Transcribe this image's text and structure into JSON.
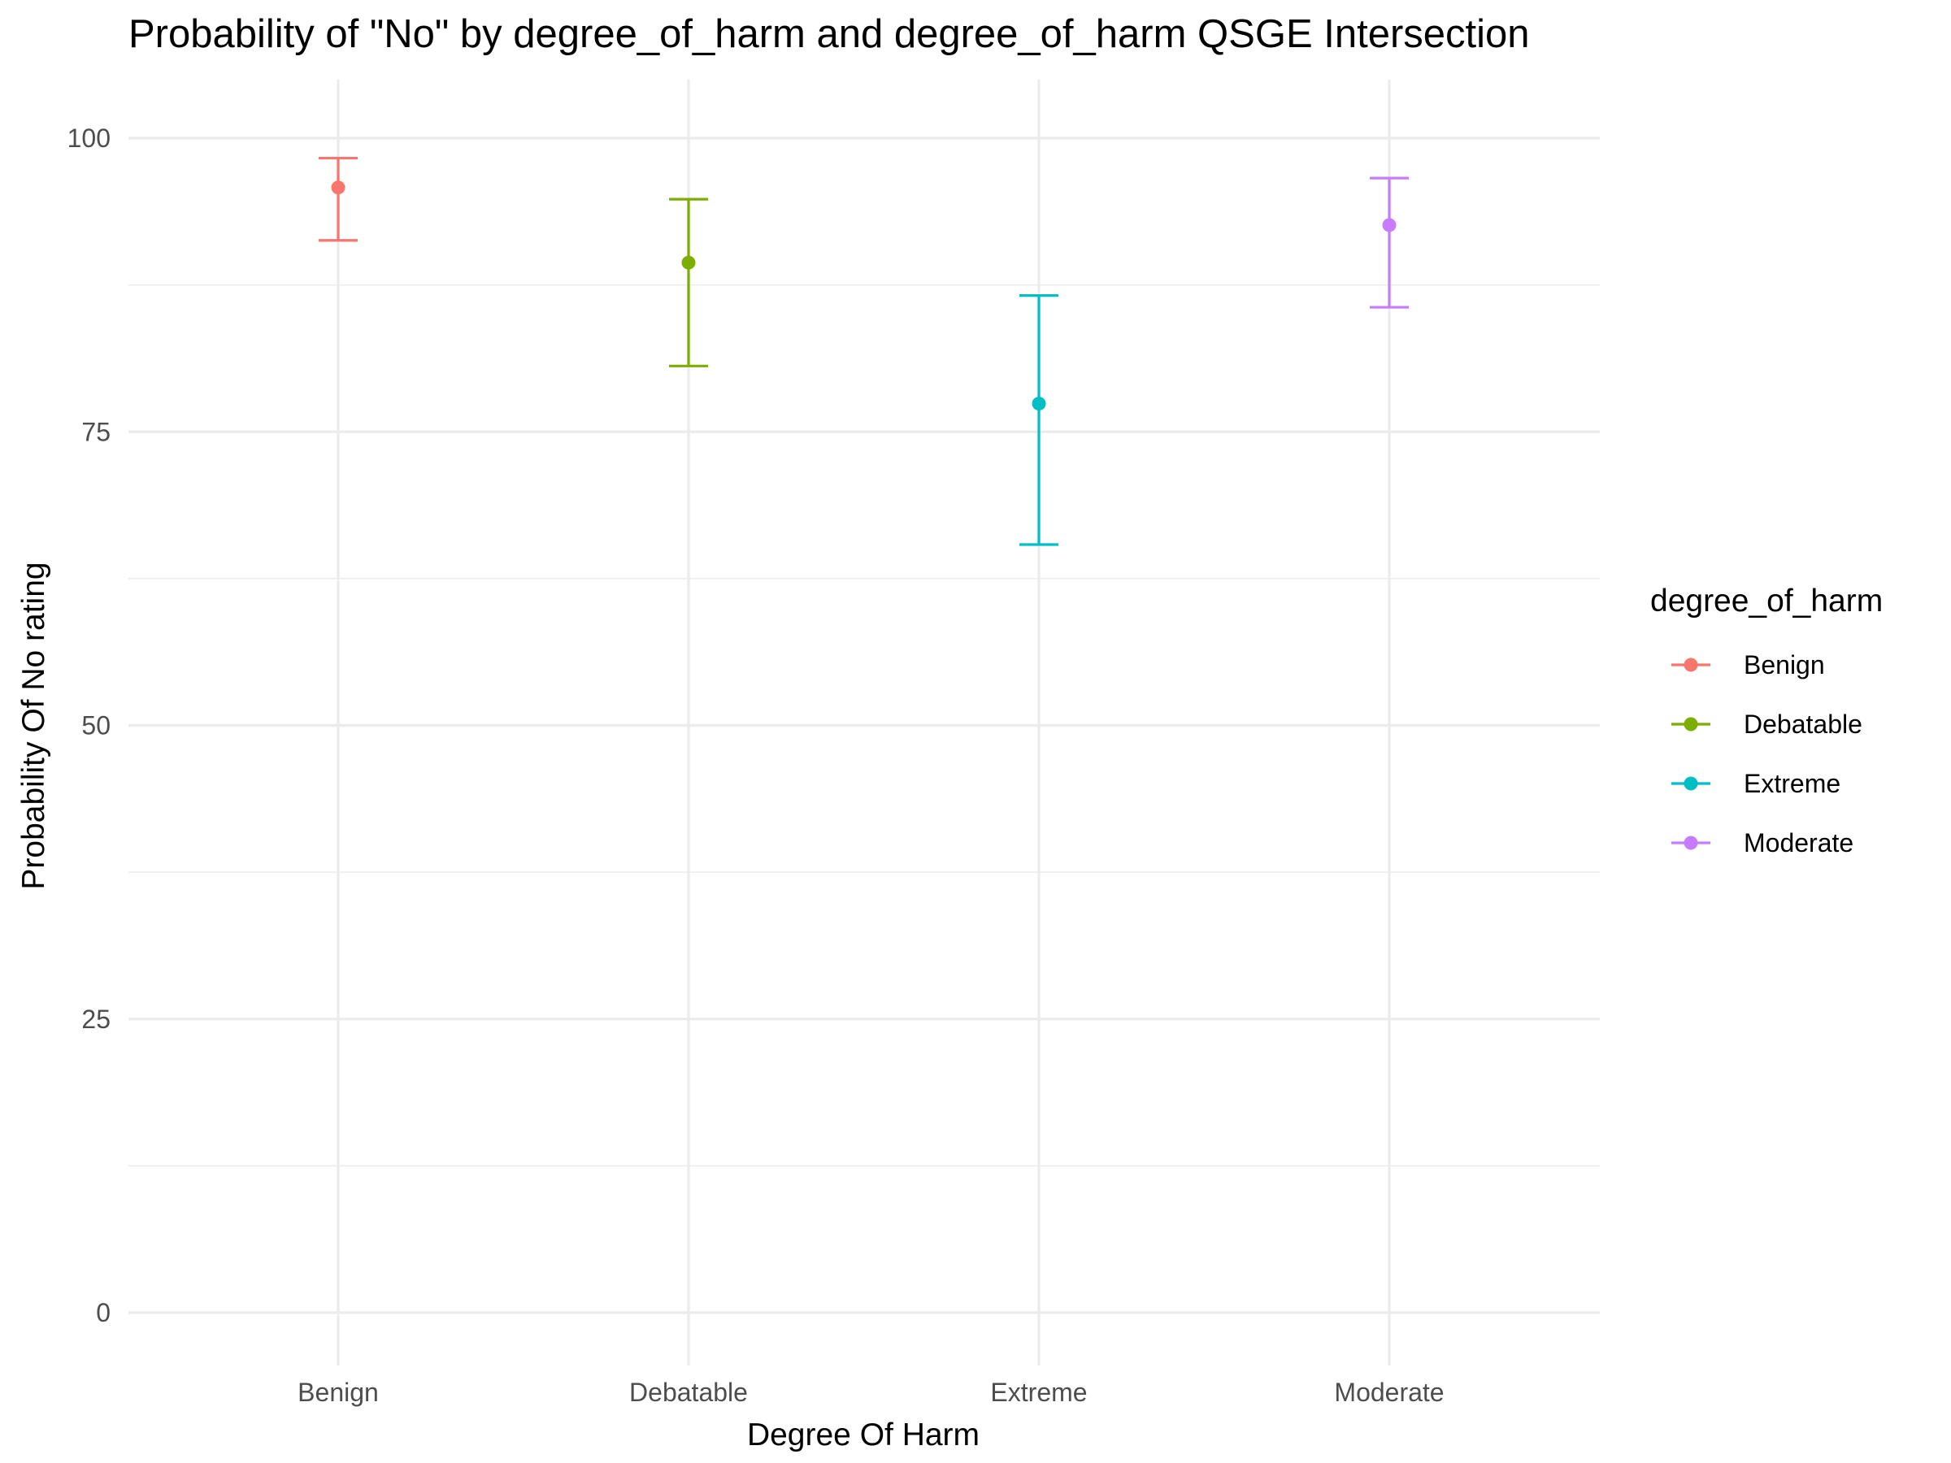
{
  "chart_data": {
    "type": "errorbar",
    "title": "Probability of \"No\" by degree_of_harm and  degree_of_harm  QSGE Intersection",
    "xlabel": "Degree Of Harm",
    "ylabel": "Probability Of No rating",
    "categories": [
      "Benign",
      "Debatable",
      "Extreme",
      "Moderate"
    ],
    "values": [
      95.8,
      89.4,
      77.4,
      92.6
    ],
    "ci_lower": [
      91.3,
      80.6,
      65.4,
      85.6
    ],
    "ci_upper": [
      98.3,
      94.8,
      86.6,
      96.6
    ],
    "colors": [
      "#F8766D",
      "#7CAE00",
      "#00BFC4",
      "#C77CFF"
    ],
    "ylim": [
      -2.5,
      100
    ],
    "yticks": [
      0,
      25,
      50,
      75,
      100
    ],
    "ytick_labels": [
      "0",
      "25",
      "50",
      "75",
      "100"
    ],
    "grid": true,
    "legend": {
      "title": "degree_of_harm",
      "position": "right",
      "entries": [
        "Benign",
        "Debatable",
        "Extreme",
        "Moderate"
      ]
    }
  }
}
